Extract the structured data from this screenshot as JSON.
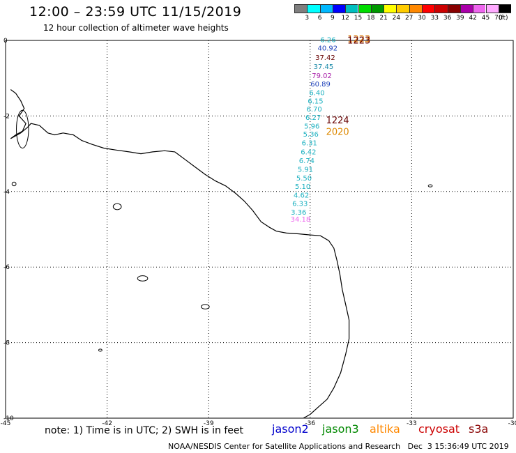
{
  "header": {
    "title": "12:00 – 23:59 UTC 11/15/2019",
    "subtitle": "12 hour collection of altimeter wave heights"
  },
  "legend": {
    "bins": [
      "3",
      "6",
      "9",
      "12",
      "15",
      "18",
      "21",
      "24",
      "27",
      "30",
      "33",
      "36",
      "39",
      "42",
      "45",
      "70"
    ],
    "colors": [
      "#7f7f7f",
      "#00ffff",
      "#00b8ff",
      "#0000ff",
      "#00bfbf",
      "#00dd00",
      "#009900",
      "#ffff00",
      "#ffcc00",
      "#ff8800",
      "#ff0000",
      "#cc0000",
      "#880000",
      "#aa00aa",
      "#ee66ee",
      "#ffaaff",
      "#000000"
    ],
    "units": "(ft)"
  },
  "axes": {
    "x_ticks": [
      "-45",
      "-42",
      "-39",
      "-36",
      "-33",
      "-30"
    ],
    "y_ticks": [
      "0",
      "-2",
      "-4",
      "-6",
      "-8",
      "-10"
    ],
    "x_range": [
      -45,
      -30
    ],
    "y_range": [
      -10,
      0
    ]
  },
  "track": {
    "pass_labels": [
      {
        "text": "1223",
        "color": "#dd7700",
        "lon": -34.9,
        "lat": -0.05
      },
      {
        "text": "1223",
        "color": "#660000",
        "lon": -34.9,
        "lat": -0.08
      },
      {
        "text": "1224",
        "color": "#660000",
        "lon": -35.53,
        "lat": -2.2
      },
      {
        "text": "2020",
        "color": "#dd8800",
        "lon": -35.53,
        "lat": -2.5
      }
    ],
    "values": [
      {
        "text": "6.26",
        "color": "#1ab0c0",
        "lon": -35.7,
        "lat": -0.05
      },
      {
        "text": "40.92",
        "color": "#2244bb",
        "lon": -35.78,
        "lat": -0.27
      },
      {
        "text": "37.42",
        "color": "#660000",
        "lon": -35.85,
        "lat": -0.52
      },
      {
        "text": "37.45",
        "color": "#1a8aa8",
        "lon": -35.9,
        "lat": -0.76
      },
      {
        "text": "79.02",
        "color": "#aa22aa",
        "lon": -35.95,
        "lat": -1.0
      },
      {
        "text": "60.89",
        "color": "#2244bb",
        "lon": -35.99,
        "lat": -1.22
      },
      {
        "text": "6.40",
        "color": "#1ab0c0",
        "lon": -36.03,
        "lat": -1.45
      },
      {
        "text": "6.15",
        "color": "#1ab0c0",
        "lon": -36.07,
        "lat": -1.67
      },
      {
        "text": "6.70",
        "color": "#1ab0c0",
        "lon": -36.11,
        "lat": -1.88
      },
      {
        "text": "6.27",
        "color": "#1ab0c0",
        "lon": -36.14,
        "lat": -2.1
      },
      {
        "text": "5.96",
        "color": "#1ab0c0",
        "lon": -36.18,
        "lat": -2.33
      },
      {
        "text": "5.36",
        "color": "#1ab0c0",
        "lon": -36.21,
        "lat": -2.55
      },
      {
        "text": "6.31",
        "color": "#1ab0c0",
        "lon": -36.25,
        "lat": -2.78
      },
      {
        "text": "6.42",
        "color": "#1ab0c0",
        "lon": -36.28,
        "lat": -3.02
      },
      {
        "text": "6.74",
        "color": "#1ab0c0",
        "lon": -36.33,
        "lat": -3.25
      },
      {
        "text": "5.91",
        "color": "#1ab0c0",
        "lon": -36.37,
        "lat": -3.48
      },
      {
        "text": "5.50",
        "color": "#1ab0c0",
        "lon": -36.41,
        "lat": -3.71
      },
      {
        "text": "5.10",
        "color": "#1ab0c0",
        "lon": -36.45,
        "lat": -3.93
      },
      {
        "text": "4.62",
        "color": "#1ab0c0",
        "lon": -36.49,
        "lat": -4.16
      },
      {
        "text": "6.33",
        "color": "#1ab0c0",
        "lon": -36.53,
        "lat": -4.38
      },
      {
        "text": "3.36",
        "color": "#1ab0c0",
        "lon": -36.57,
        "lat": -4.61
      },
      {
        "text": "34.18",
        "color": "#ee66ee",
        "lon": -36.58,
        "lat": -4.8
      }
    ]
  },
  "footer": {
    "note": "note: 1) Time is in UTC; 2) SWH is in feet",
    "satellites": [
      {
        "name": "jason2",
        "color": "#0000cc"
      },
      {
        "name": "jason3",
        "color": "#008800"
      },
      {
        "name": "altika",
        "color": "#ff8800"
      },
      {
        "name": "cryosat",
        "color": "#cc0000"
      },
      {
        "name": "s3a",
        "color": "#880000"
      }
    ],
    "credit": "NOAA/NESDIS Center for Satellite Applications and Research   Dec  3 15:36:49 UTC 2019"
  }
}
